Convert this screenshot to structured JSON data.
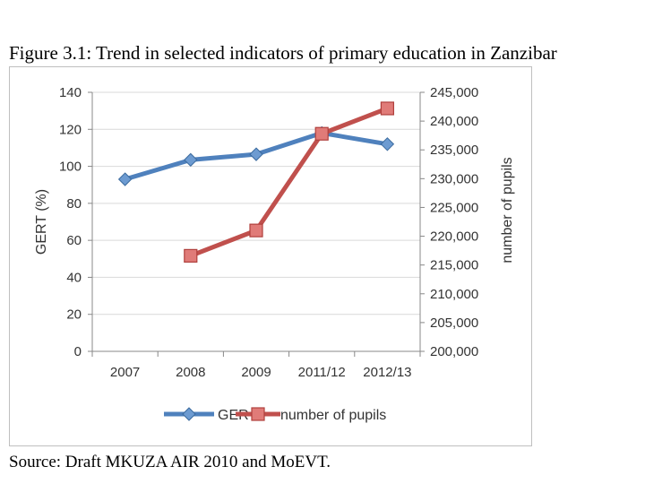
{
  "figure_title": "Figure 3.1: Trend in selected indicators of primary education in Zanzibar",
  "source": "Source: Draft MKUZA AIR 2010 and MoEVT.",
  "chart_data": {
    "type": "line",
    "categories": [
      "2007",
      "2008",
      "2009",
      "2011/12",
      "2012/13"
    ],
    "series": [
      {
        "name": "GER",
        "axis": "left",
        "color": "#4f81bd",
        "marker": "diamond",
        "values": [
          93,
          103.5,
          106.5,
          118,
          112
        ]
      },
      {
        "name": "number of pupils",
        "axis": "right",
        "color": "#c0504d",
        "marker": "square",
        "values": [
          null,
          216600,
          221000,
          237800,
          242200
        ]
      }
    ],
    "ylabel_left": "GERT (%)",
    "ylabel_right": "number of pupils",
    "ylim_left": [
      0,
      140
    ],
    "ylim_right": [
      200000,
      245000
    ],
    "yticks_left": [
      "0",
      "20",
      "40",
      "60",
      "80",
      "100",
      "120",
      "140"
    ],
    "yticks_right": [
      "200,000",
      "205,000",
      "210,000",
      "215,000",
      "220,000",
      "225,000",
      "230,000",
      "235,000",
      "240,000",
      "245,000"
    ],
    "grid": "horizontal",
    "legend_position": "bottom"
  }
}
